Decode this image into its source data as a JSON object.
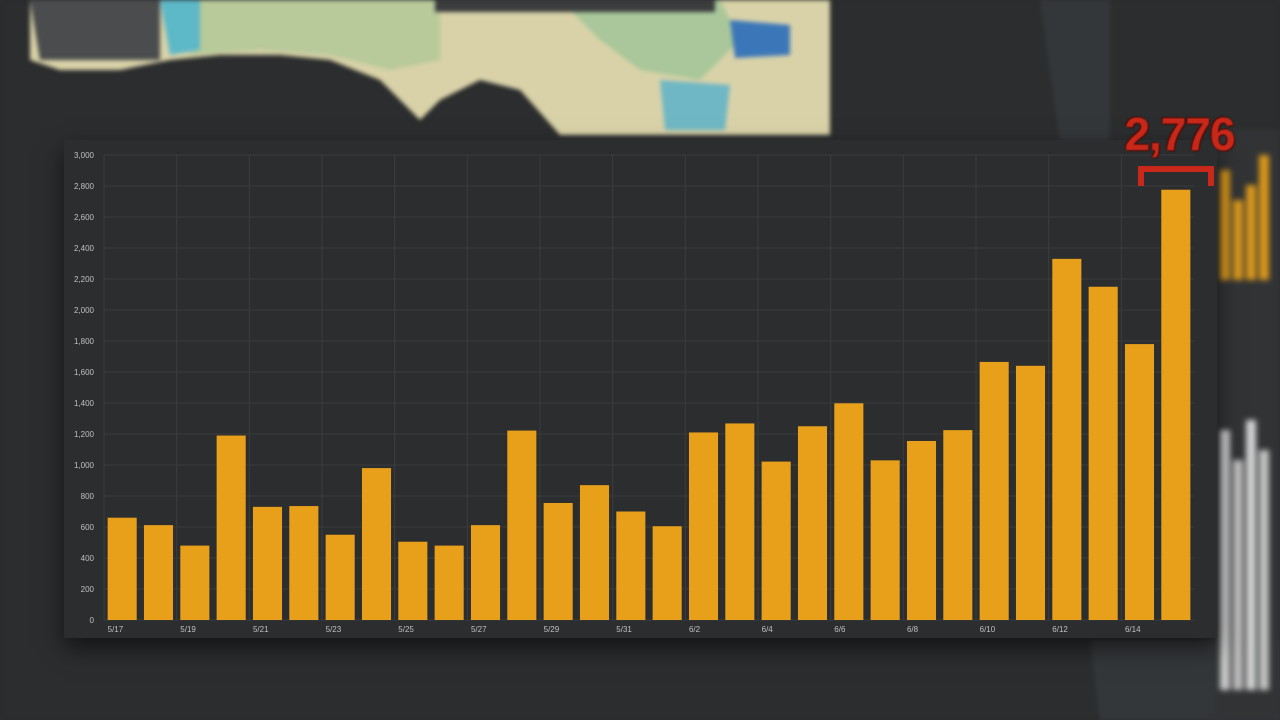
{
  "callout": {
    "value_label": "2,776"
  },
  "colors": {
    "bar": "#e8a01a",
    "grid": "#3a3c3e",
    "callout": "#c8281a",
    "background": "#2b2d2e"
  },
  "chart_data": {
    "type": "bar",
    "categories": [
      "5/17",
      "5/18",
      "5/19",
      "5/20",
      "5/21",
      "5/22",
      "5/23",
      "5/24",
      "5/25",
      "5/26",
      "5/27",
      "5/28",
      "5/29",
      "5/30",
      "5/31",
      "6/1",
      "6/2",
      "6/3",
      "6/4",
      "6/5",
      "6/6",
      "6/7",
      "6/8",
      "6/9",
      "6/10",
      "6/11",
      "6/12",
      "6/13",
      "6/14",
      "6/15"
    ],
    "values": [
      660,
      612,
      480,
      1190,
      730,
      735,
      550,
      980,
      505,
      480,
      612,
      1222,
      755,
      870,
      700,
      605,
      1210,
      1268,
      1022,
      1250,
      1398,
      1030,
      1155,
      1225,
      1665,
      1640,
      2330,
      2150,
      1780,
      2776
    ],
    "x_tick_labels": [
      "5/17",
      "5/19",
      "5/21",
      "5/23",
      "5/25",
      "5/27",
      "5/29",
      "5/31",
      "6/2",
      "6/4",
      "6/6",
      "6/8",
      "6/10",
      "6/12",
      "6/14"
    ],
    "y_ticks": [
      0,
      200,
      400,
      600,
      800,
      1000,
      1200,
      1400,
      1600,
      1800,
      2000,
      2200,
      2400,
      2600,
      2800,
      3000
    ],
    "y_tick_labels": [
      "0",
      "200",
      "400",
      "600",
      "800",
      "1,000",
      "1,200",
      "1,400",
      "1,600",
      "1,800",
      "2,000",
      "2,200",
      "2,400",
      "2,600",
      "2,800",
      "3,000"
    ],
    "ylim": [
      0,
      3000
    ],
    "grid": true,
    "legend": "none",
    "highlight": {
      "category": "6/15",
      "label": "2,776"
    }
  }
}
